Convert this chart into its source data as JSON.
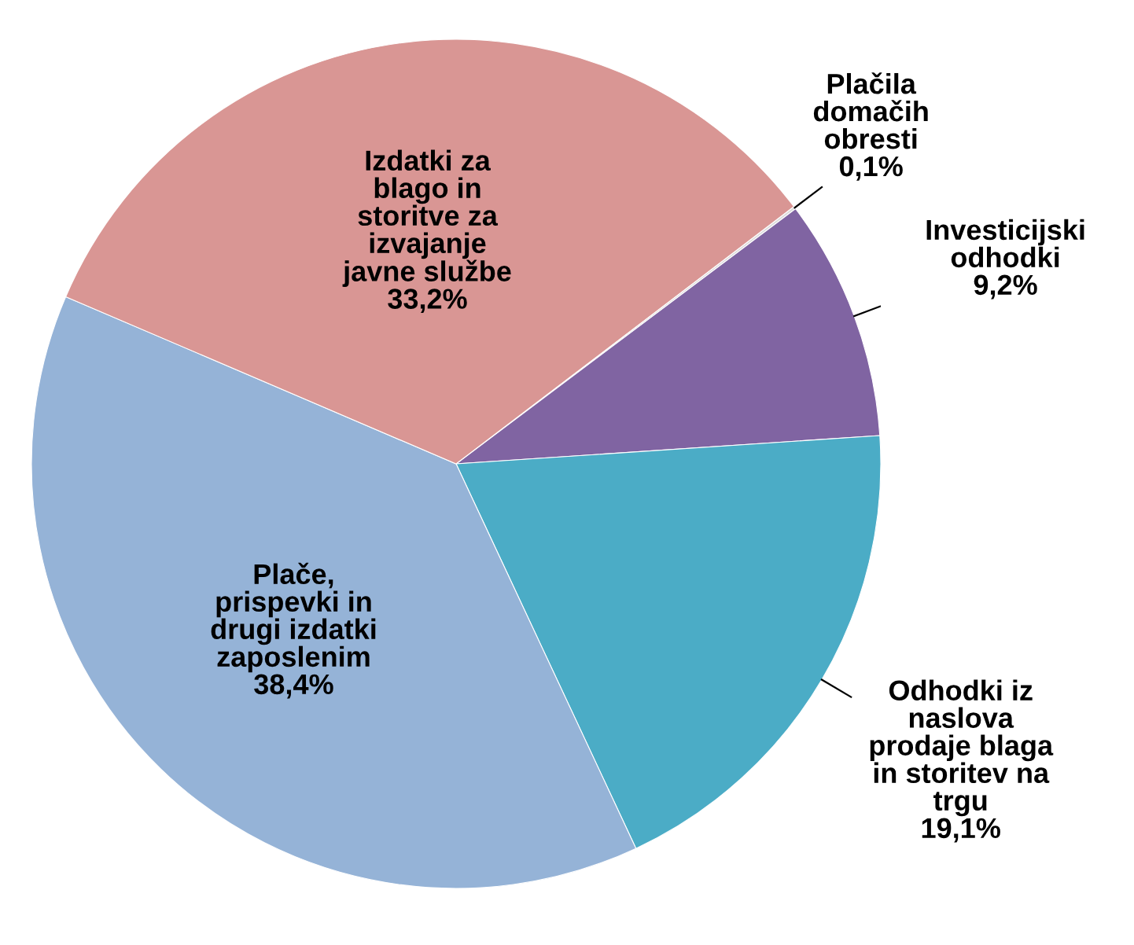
{
  "chart_data": {
    "type": "pie",
    "categories": [
      "Plačila\ndomačih\nobresti",
      "Investicijski\nodhodki",
      "Odhodki iz\nnaslova\nprodaje blaga\nin storitev na\ntrgu",
      "Plače,\nprispevki in\ndrugi izdatki\nzaposlenim",
      "Izdatki za\nblago in\nstoritve za\nizvajanje\njavne službe"
    ],
    "values": [
      0.1,
      9.2,
      19.1,
      38.4,
      33.2
    ],
    "value_labels": [
      "0,1%",
      "9,2%",
      "19,1%",
      "38,4%",
      "33,2%"
    ],
    "colors": [
      "#dcdcdc",
      "#8064a2",
      "#4bacc6",
      "#95b3d7",
      "#d99694"
    ]
  }
}
